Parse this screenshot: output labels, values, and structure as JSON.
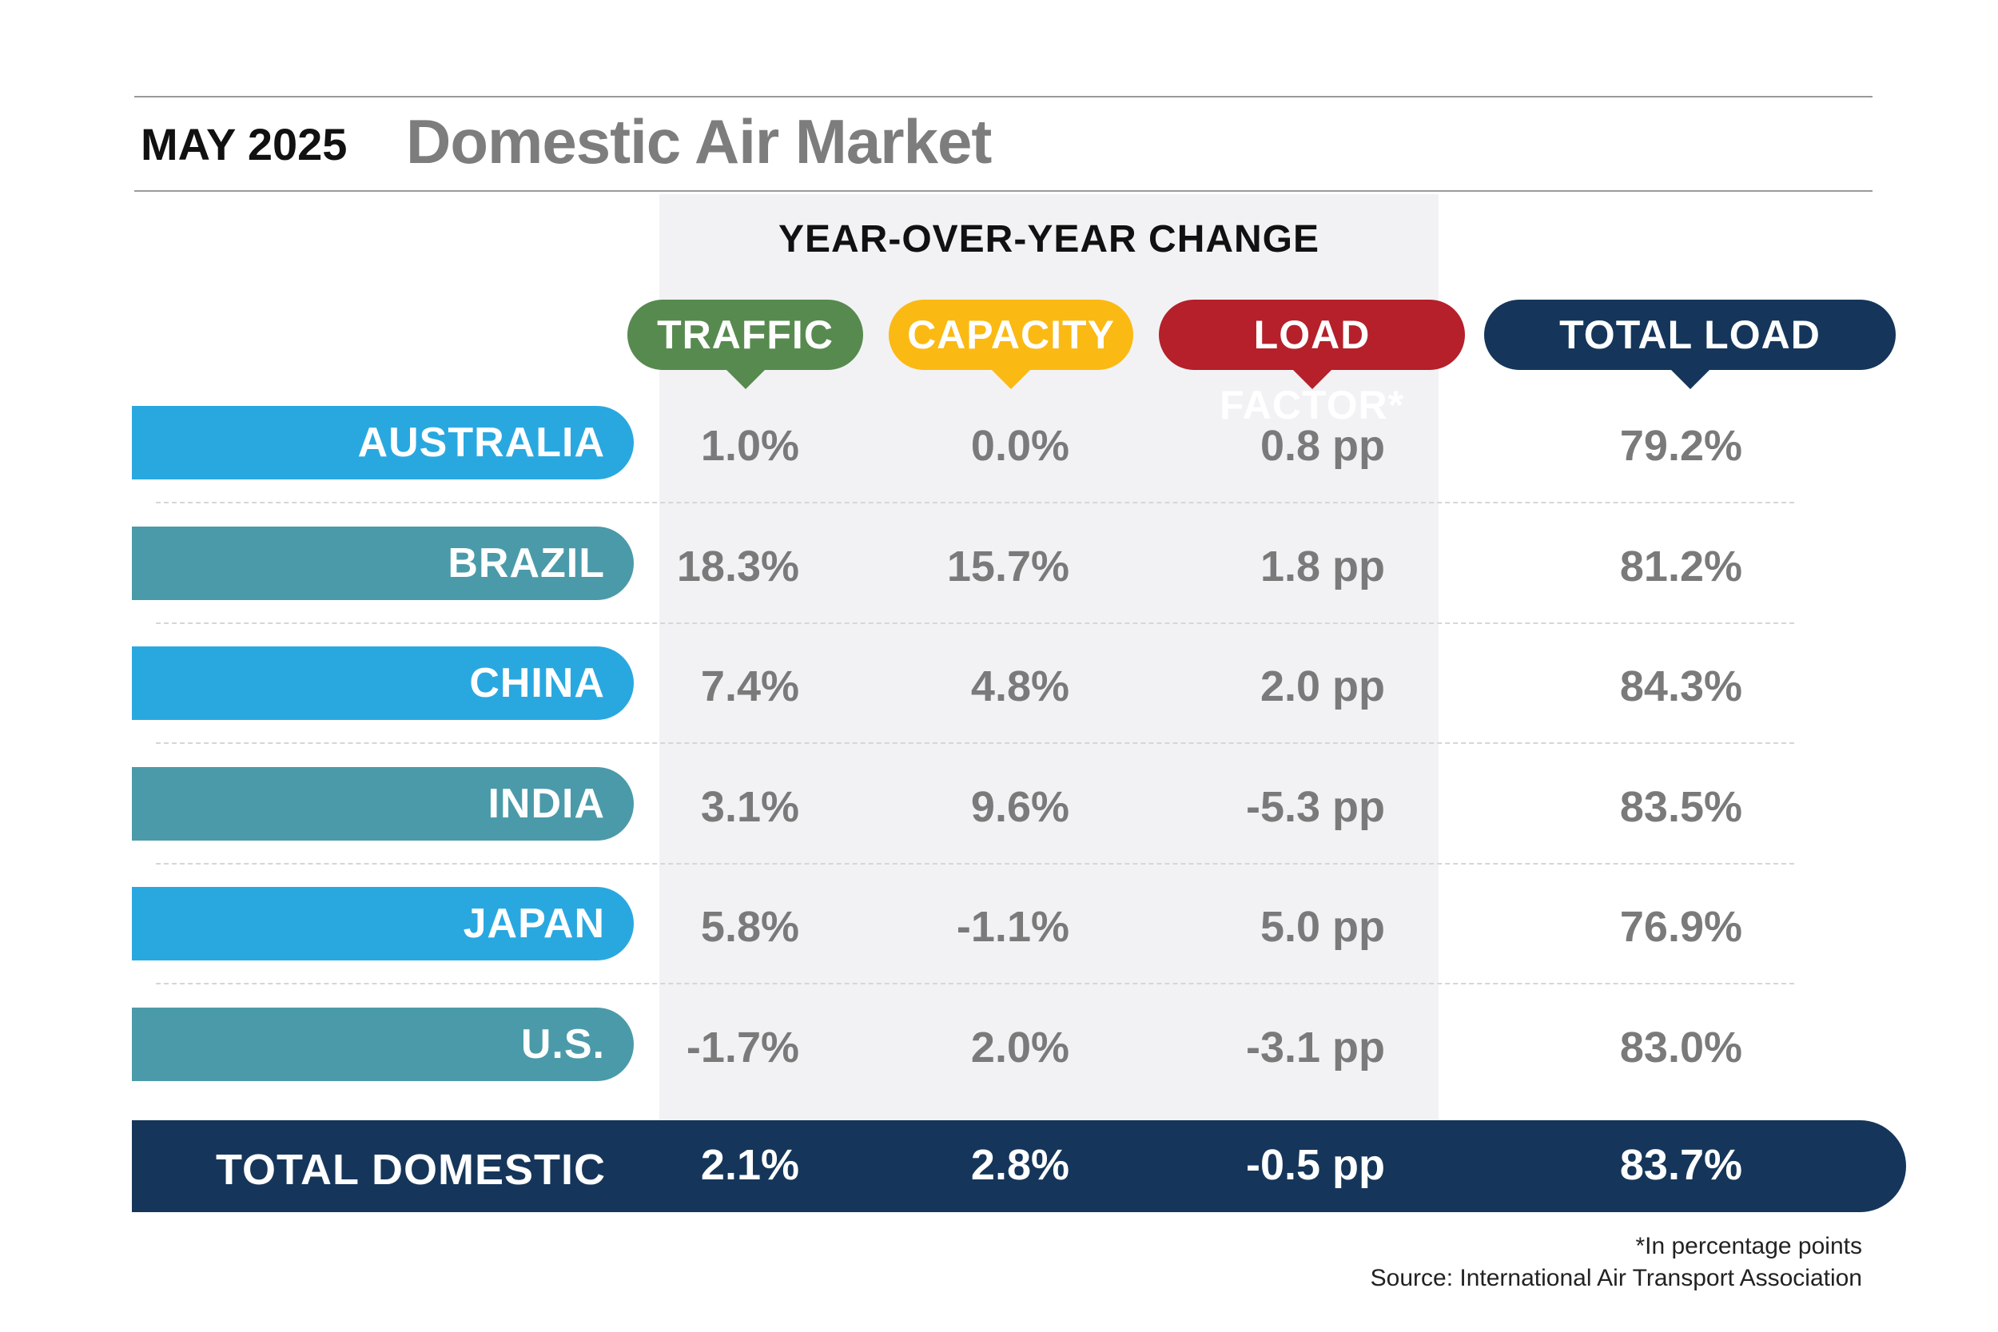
{
  "header": {
    "month": "MAY 2025",
    "title": "Domestic Air Market"
  },
  "subheader": "YEAR-OVER-YEAR CHANGE",
  "columns": [
    {
      "label": "TRAFFIC",
      "color": "#578a4f"
    },
    {
      "label": "CAPACITY",
      "color": "#fbb913"
    },
    {
      "label": "LOAD FACTOR*",
      "color": "#b5202a"
    },
    {
      "label": "TOTAL LOAD FACTOR",
      "color": "#15365a"
    }
  ],
  "colors": {
    "row_light_blue": "#29a8e0",
    "row_teal": "#4b9aa9",
    "total_bg": "#15365a",
    "values_gray": "#7a7a7a"
  },
  "rows": [
    {
      "country": "AUSTRALIA",
      "traffic": "1.0%",
      "capacity": "0.0%",
      "load_factor": "0.8 pp",
      "total_load_factor": "79.2%"
    },
    {
      "country": "BRAZIL",
      "traffic": "18.3%",
      "capacity": "15.7%",
      "load_factor": "1.8 pp",
      "total_load_factor": "81.2%"
    },
    {
      "country": "CHINA",
      "traffic": "7.4%",
      "capacity": "4.8%",
      "load_factor": "2.0 pp",
      "total_load_factor": "84.3%"
    },
    {
      "country": "INDIA",
      "traffic": "3.1%",
      "capacity": "9.6%",
      "load_factor": "-5.3 pp",
      "total_load_factor": "83.5%"
    },
    {
      "country": "JAPAN",
      "traffic": "5.8%",
      "capacity": "-1.1%",
      "load_factor": "5.0 pp",
      "total_load_factor": "76.9%"
    },
    {
      "country": "U.S.",
      "traffic": "-1.7%",
      "capacity": "2.0%",
      "load_factor": "-3.1 pp",
      "total_load_factor": "83.0%"
    }
  ],
  "total": {
    "label": "TOTAL DOMESTIC",
    "traffic": "2.1%",
    "capacity": "2.8%",
    "load_factor": "-0.5 pp",
    "total_load_factor": "83.7%"
  },
  "footnote": "*In percentage points",
  "source": "Source: International Air Transport Association",
  "chart_data": {
    "type": "table",
    "title": "Domestic Air Market",
    "columns": [
      "TRAFFIC",
      "CAPACITY",
      "LOAD FACTOR*",
      "TOTAL LOAD FACTOR"
    ],
    "categories": [
      "AUSTRALIA",
      "BRAZIL",
      "CHINA",
      "INDIA",
      "JAPAN",
      "U.S.",
      "TOTAL DOMESTIC"
    ],
    "series": [
      {
        "name": "TRAFFIC",
        "values": [
          1.0,
          18.3,
          7.4,
          3.1,
          5.8,
          -1.7,
          2.1
        ]
      },
      {
        "name": "CAPACITY",
        "values": [
          0.0,
          15.7,
          4.8,
          9.6,
          -1.1,
          2.0,
          2.8
        ]
      },
      {
        "name": "LOAD FACTOR*",
        "values": [
          0.8,
          1.8,
          2.0,
          -5.3,
          5.0,
          -3.1,
          -0.5
        ]
      },
      {
        "name": "TOTAL LOAD FACTOR",
        "values": [
          79.2,
          81.2,
          84.3,
          83.5,
          76.9,
          83.0,
          83.7
        ]
      }
    ]
  }
}
